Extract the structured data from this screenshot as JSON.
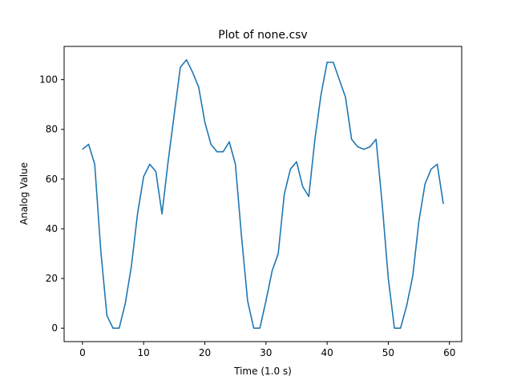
{
  "chart_data": {
    "type": "line",
    "title": "Plot of none.csv",
    "xlabel": "Time (1.0 s)",
    "ylabel": "Analog Value",
    "xlim": [
      -3,
      62
    ],
    "ylim": [
      -5.4,
      113.4
    ],
    "xticks": [
      0,
      10,
      20,
      30,
      40,
      50,
      60
    ],
    "yticks": [
      0,
      20,
      40,
      60,
      80,
      100
    ],
    "grid": false,
    "line_color": "#1f77b4",
    "series": [
      {
        "x": [
          0,
          1,
          2,
          3,
          4,
          5,
          6,
          7,
          8,
          9,
          10,
          11,
          12,
          13,
          14,
          15,
          16,
          17,
          18,
          19,
          20,
          21,
          22,
          23,
          24,
          25,
          26,
          27,
          28,
          29,
          30,
          31,
          32,
          33,
          34,
          35,
          36,
          37,
          38,
          39,
          40,
          41,
          42,
          43,
          44,
          45,
          46,
          47,
          48,
          49,
          50,
          51,
          52,
          53,
          54,
          55,
          56,
          57,
          58,
          59
        ],
        "values": [
          72,
          74,
          66,
          31,
          5,
          0,
          0,
          10,
          25,
          46,
          61,
          66,
          63,
          46,
          67,
          86,
          105,
          108,
          103,
          97,
          83,
          74,
          71,
          71,
          75,
          66,
          37,
          11,
          0,
          0,
          11,
          23,
          30,
          54,
          64,
          67,
          57,
          53,
          76,
          94,
          107,
          107,
          100,
          93,
          76,
          73,
          72,
          73,
          76,
          50,
          20,
          0,
          0,
          9,
          21,
          43,
          58,
          64,
          66,
          50
        ]
      }
    ]
  }
}
